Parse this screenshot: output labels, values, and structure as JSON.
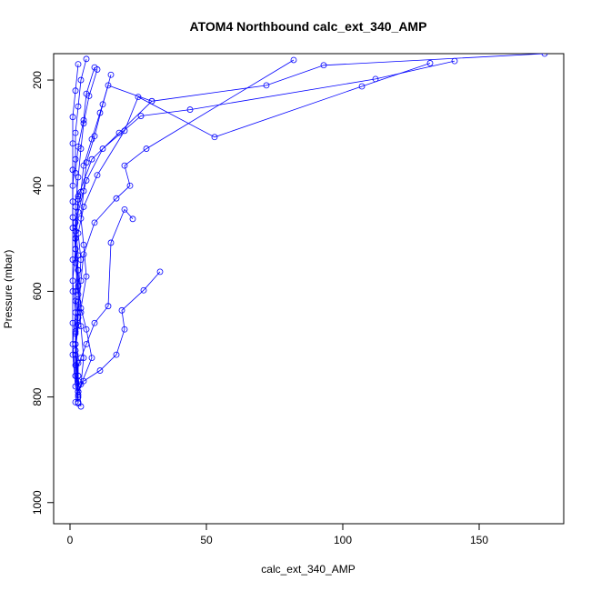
{
  "chart_data": {
    "type": "line",
    "title": "ATOM4 Northbound calc_ext_340_AMP",
    "xlabel": "calc_ext_340_AMP",
    "ylabel": "Pressure (mbar)",
    "xlim": [
      -6,
      181
    ],
    "ylim": [
      1040,
      150
    ],
    "y_reversed": true,
    "x_ticks": [
      0,
      50,
      100,
      150
    ],
    "y_ticks": [
      200,
      400,
      600,
      800,
      1000
    ],
    "marker": "open-circle",
    "color": "#0000ff",
    "grid": false,
    "series": [
      {
        "points": [
          [
            174,
            150
          ],
          [
            93,
            172
          ],
          [
            72,
            210
          ],
          [
            30,
            240
          ],
          [
            18,
            300
          ],
          [
            8,
            350
          ],
          [
            3,
            420
          ],
          [
            2,
            500
          ],
          [
            3,
            560
          ],
          [
            4,
            640
          ],
          [
            2,
            700
          ],
          [
            3,
            760
          ],
          [
            3,
            810
          ]
        ]
      },
      {
        "points": [
          [
            141,
            164
          ],
          [
            112,
            198
          ],
          [
            44,
            256
          ],
          [
            26,
            268
          ],
          [
            12,
            330
          ],
          [
            6,
            390
          ],
          [
            3,
            450
          ],
          [
            2,
            520
          ],
          [
            3,
            590
          ],
          [
            3,
            650
          ],
          [
            2,
            720
          ],
          [
            3,
            790
          ]
        ]
      },
      {
        "points": [
          [
            132,
            168
          ],
          [
            107,
            212
          ],
          [
            53,
            308
          ],
          [
            25,
            232
          ],
          [
            20,
            296
          ],
          [
            10,
            380
          ],
          [
            5,
            440
          ],
          [
            3,
            490
          ],
          [
            4,
            540
          ],
          [
            3,
            620
          ],
          [
            2,
            680
          ],
          [
            2,
            740
          ],
          [
            3,
            800
          ]
        ]
      },
      {
        "points": [
          [
            82,
            162
          ],
          [
            28,
            330
          ],
          [
            20,
            362
          ],
          [
            22,
            400
          ],
          [
            17,
            424
          ],
          [
            9,
            470
          ],
          [
            5,
            530
          ],
          [
            4,
            580
          ],
          [
            3,
            640
          ],
          [
            2,
            700
          ],
          [
            3,
            760
          ],
          [
            4,
            818
          ]
        ]
      },
      {
        "points": [
          [
            33,
            563
          ],
          [
            27,
            598
          ],
          [
            19,
            636
          ],
          [
            20,
            672
          ],
          [
            17,
            720
          ],
          [
            11,
            750
          ],
          [
            5,
            770
          ],
          [
            3,
            790
          ],
          [
            2,
            810
          ]
        ]
      },
      {
        "points": [
          [
            23,
            463
          ],
          [
            20,
            445
          ],
          [
            15,
            508
          ],
          [
            14,
            628
          ],
          [
            9,
            660
          ],
          [
            6,
            700
          ],
          [
            4,
            726
          ],
          [
            2,
            760
          ],
          [
            3,
            780
          ]
        ]
      },
      {
        "points": [
          [
            30,
            240
          ],
          [
            14,
            210
          ],
          [
            11,
            262
          ],
          [
            8,
            312
          ],
          [
            5,
            362
          ],
          [
            4,
            412
          ],
          [
            2,
            470
          ],
          [
            3,
            532
          ],
          [
            2,
            600
          ],
          [
            3,
            664
          ],
          [
            2,
            712
          ],
          [
            3,
            770
          ]
        ]
      },
      {
        "points": [
          [
            10,
            180
          ],
          [
            7,
            230
          ],
          [
            5,
            282
          ],
          [
            4,
            330
          ],
          [
            3,
            384
          ],
          [
            2,
            440
          ],
          [
            2,
            500
          ],
          [
            3,
            560
          ],
          [
            2,
            618
          ],
          [
            2,
            676
          ],
          [
            3,
            736
          ],
          [
            3,
            796
          ]
        ]
      },
      {
        "points": [
          [
            6,
            160
          ],
          [
            4,
            200
          ],
          [
            3,
            250
          ],
          [
            2,
            300
          ],
          [
            2,
            350
          ],
          [
            1,
            400
          ],
          [
            1,
            460
          ],
          [
            2,
            520
          ],
          [
            1,
            580
          ],
          [
            2,
            640
          ],
          [
            1,
            700
          ],
          [
            2,
            760
          ],
          [
            3,
            812
          ]
        ]
      },
      {
        "points": [
          [
            3,
            170
          ],
          [
            2,
            220
          ],
          [
            1,
            270
          ],
          [
            1,
            320
          ],
          [
            1,
            370
          ],
          [
            1,
            430
          ],
          [
            1,
            480
          ],
          [
            1,
            540
          ],
          [
            1,
            600
          ],
          [
            1,
            660
          ],
          [
            1,
            720
          ],
          [
            2,
            780
          ]
        ]
      },
      {
        "points": [
          [
            9,
            176
          ],
          [
            6,
            226
          ],
          [
            5,
            276
          ],
          [
            3,
            326
          ],
          [
            2,
            376
          ],
          [
            3,
            426
          ],
          [
            2,
            486
          ],
          [
            2,
            546
          ],
          [
            3,
            606
          ],
          [
            4,
            666
          ],
          [
            5,
            726
          ],
          [
            4,
            776
          ]
        ]
      },
      {
        "points": [
          [
            15,
            190
          ],
          [
            12,
            246
          ],
          [
            9,
            306
          ],
          [
            6,
            356
          ],
          [
            5,
            410
          ],
          [
            4,
            462
          ],
          [
            5,
            512
          ],
          [
            6,
            572
          ],
          [
            4,
            632
          ],
          [
            6,
            672
          ],
          [
            8,
            726
          ],
          [
            3,
            790
          ]
        ]
      }
    ]
  }
}
